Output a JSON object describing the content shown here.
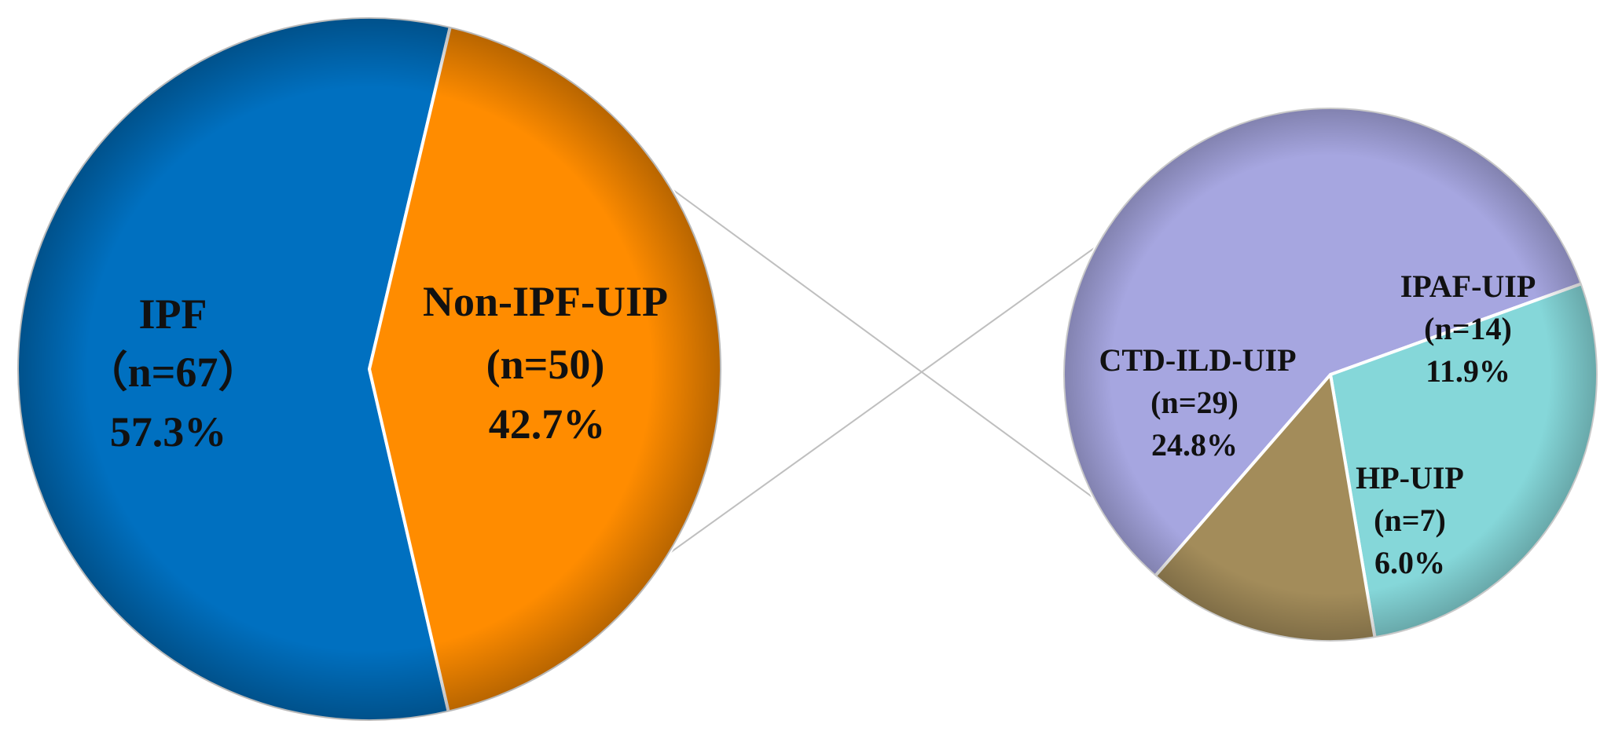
{
  "chart_data": [
    {
      "type": "pie",
      "title": "",
      "slices": [
        {
          "label": "IPF",
          "count_label": "（n=67）",
          "percent_label": "57.3%",
          "value": 57.3,
          "color": "#0070C0"
        },
        {
          "label": "Non-IPF-UIP",
          "count_label": "(n=50)",
          "percent_label": "42.7%",
          "value": 42.7,
          "color": "#FF8C00"
        }
      ]
    },
    {
      "type": "pie",
      "title": "",
      "exploded_from": "Non-IPF-UIP",
      "slices": [
        {
          "label": "CTD-ILD-UIP",
          "count_label": "(n=29)",
          "percent_label": "24.8%",
          "value": 24.8,
          "color": "#A6A6E0"
        },
        {
          "label": "IPAF-UIP",
          "count_label": "(n=14)",
          "percent_label": "11.9%",
          "value": 11.9,
          "color": "#85D7D9"
        },
        {
          "label": "HP-UIP",
          "count_label": "(n=7)",
          "percent_label": "6.0%",
          "value": 6.0,
          "color": "#A38C5A"
        }
      ]
    }
  ]
}
